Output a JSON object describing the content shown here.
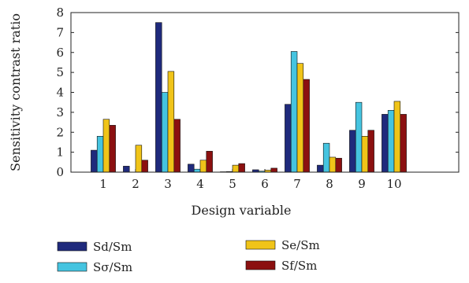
{
  "chart_data": {
    "type": "bar",
    "xlabel": "Design variable",
    "ylabel": "Sensitivity contrast ratio",
    "categories": [
      "1",
      "2",
      "3",
      "4",
      "5",
      "6",
      "7",
      "8",
      "9",
      "10"
    ],
    "xlim": [
      0,
      12
    ],
    "ylim": [
      0,
      8
    ],
    "yticks": [
      "0",
      "1",
      "2",
      "3",
      "4",
      "5",
      "6",
      "7",
      "8"
    ],
    "grid": false,
    "legend_position": "bottom",
    "series": [
      {
        "name": "Sd/Sm",
        "color": "#1f2a7c",
        "values": [
          1.1,
          0.3,
          7.5,
          0.4,
          0.02,
          0.12,
          3.4,
          0.35,
          2.1,
          2.9
        ]
      },
      {
        "name": "Sσ/Sm",
        "color": "#45c4e0",
        "values": [
          1.8,
          0.0,
          4.0,
          0.15,
          0.03,
          0.05,
          6.05,
          1.45,
          3.5,
          3.1
        ]
      },
      {
        "name": "Se/Sm",
        "color": "#f0c419",
        "values": [
          2.65,
          1.35,
          5.05,
          0.6,
          0.35,
          0.1,
          5.45,
          0.75,
          1.8,
          3.55
        ]
      },
      {
        "name": "Sf/Sm",
        "color": "#8b1010",
        "values": [
          2.35,
          0.6,
          2.65,
          1.05,
          0.43,
          0.2,
          4.65,
          0.7,
          2.1,
          2.9
        ]
      }
    ]
  }
}
